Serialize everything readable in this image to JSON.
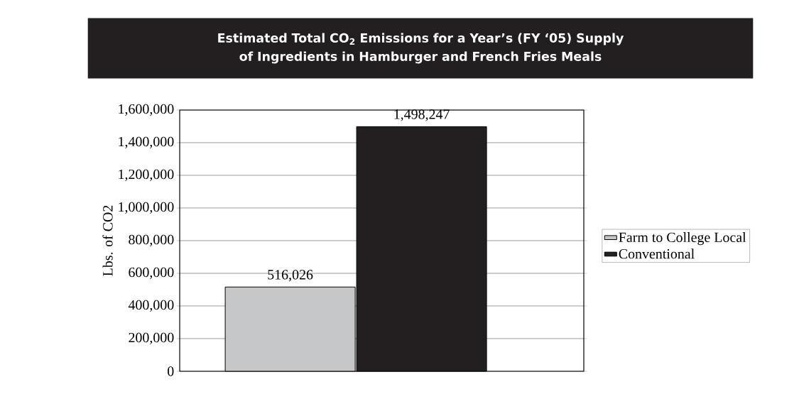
{
  "chart_data": {
    "type": "bar",
    "title": "Estimated Total CO$_{2}$ Emissions for a Year’s (FY ‘05) Supply of Ingredients in Hamburger and French Fries Meals",
    "ylabel": "Lbs. of CO2",
    "categories": [
      null
    ],
    "series": [
      {
        "name": "Farm to College Local",
        "color": "#c6c7c9",
        "values": [
          516026
        ],
        "value_labels": [
          "516,026"
        ]
      },
      {
        "name": "Conventional",
        "color": "#231f20",
        "values": [
          1498247
        ],
        "value_labels": [
          "1,498,247"
        ]
      }
    ],
    "ylim": [
      0,
      1600000
    ],
    "yticks": [
      0,
      {
        "value": 200000,
        "label": "200,000"
      },
      {
        "value": 400000,
        "label": "400,000"
      },
      {
        "value": 600000,
        "label": "600,000"
      },
      {
        "value": 800000,
        "label": "800,000"
      },
      {
        "value": 1000000,
        "label": "1,000,000"
      },
      {
        "value": 1200000,
        "label": "1,200,000"
      },
      {
        "value": 1400000,
        "label": "1,400,000"
      },
      {
        "value": 1600000,
        "label": "1,600,000"
      }
    ],
    "grid": "y",
    "legend": "right"
  }
}
